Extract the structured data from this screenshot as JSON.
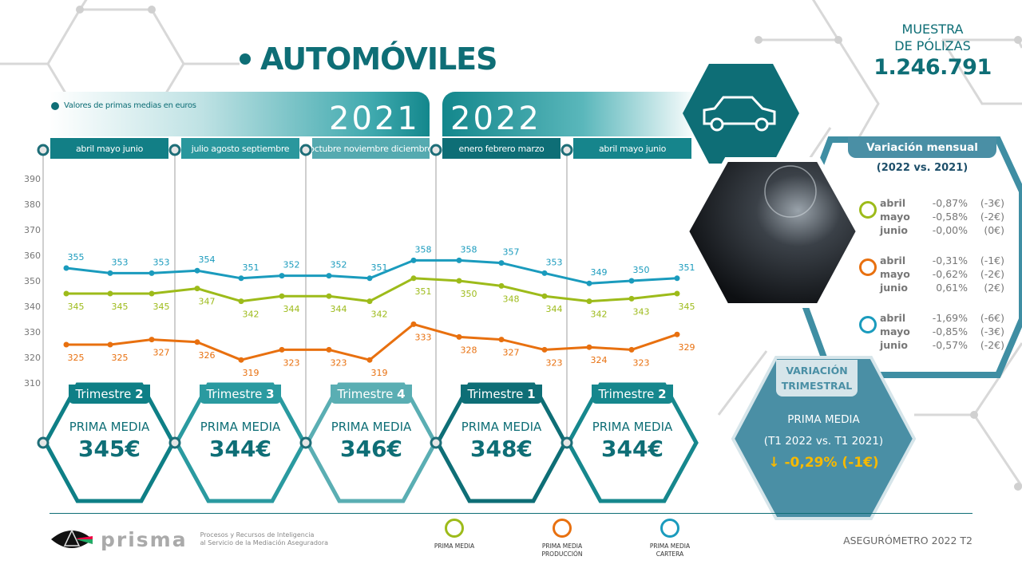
{
  "header": {
    "title": "AUTOMÓVILES",
    "note": "Valores de primas medias en euros",
    "year_2021": "2021",
    "year_2022": "2022"
  },
  "periods": [
    {
      "label": "abril  mayo  junio",
      "color": "#127f86"
    },
    {
      "label": "julio  agosto  septiembre",
      "color": "#2a979d"
    },
    {
      "label": "octubre noviembre diciembre",
      "color": "#55aab0"
    },
    {
      "label": "enero  febrero  marzo",
      "color": "#0e6e76"
    },
    {
      "label": "abril  mayo  junio",
      "color": "#16858c"
    }
  ],
  "muestra": {
    "line1": "MUESTRA",
    "line2": "DE PÓLIZAS",
    "value": "1.246.791"
  },
  "chart_data": {
    "type": "line",
    "ylim": [
      310,
      390
    ],
    "yticks": [
      390,
      380,
      370,
      360,
      350,
      340,
      330,
      320,
      310
    ],
    "categories": [
      "abr 21",
      "may 21",
      "jun 21",
      "jul 21",
      "ago 21",
      "sep 21",
      "oct 21",
      "nov 21",
      "dic 21",
      "ene 22",
      "feb 22",
      "mar 22",
      "abr 22",
      "may 22",
      "jun 22"
    ],
    "series": [
      {
        "name": "PRIMA MEDIA CARTERA",
        "color": "#1a9bbd",
        "values": [
          355,
          353,
          353,
          354,
          351,
          352,
          352,
          351,
          358,
          358,
          357,
          353,
          349,
          350,
          351
        ]
      },
      {
        "name": "PRIMA MEDIA",
        "color": "#9dbb1a",
        "values": [
          345,
          345,
          345,
          347,
          342,
          344,
          344,
          342,
          351,
          350,
          348,
          344,
          342,
          343,
          345
        ]
      },
      {
        "name": "PRIMA MEDIA PRODUCCIÓN",
        "color": "#e8700f",
        "values": [
          325,
          325,
          327,
          326,
          319,
          323,
          323,
          319,
          333,
          328,
          327,
          323,
          324,
          323,
          329
        ]
      }
    ],
    "grid": false,
    "legend": "bottom"
  },
  "quarters": [
    {
      "label": "Trimestre",
      "num": "2",
      "pm": "PRIMA MEDIA",
      "value": "345€",
      "color": "#0e7f86"
    },
    {
      "label": "Trimestre",
      "num": "3",
      "pm": "PRIMA MEDIA",
      "value": "344€",
      "color": "#2a9aa0"
    },
    {
      "label": "Trimestre",
      "num": "4",
      "pm": "PRIMA MEDIA",
      "value": "346€",
      "color": "#5aaeb3"
    },
    {
      "label": "Trimestre",
      "num": "1",
      "pm": "PRIMA MEDIA",
      "value": "348€",
      "color": "#0e6e76"
    },
    {
      "label": "Trimestre",
      "num": "2",
      "pm": "PRIMA MEDIA",
      "value": "344€",
      "color": "#16878d"
    }
  ],
  "variacion_mensual": {
    "title": "Variación mensual",
    "subtitle": "(2022 vs. 2021)",
    "groups": [
      {
        "color": "#9dbb1a",
        "rows": [
          {
            "m": "abril",
            "p": "-0,87%",
            "e": "(-3€)"
          },
          {
            "m": "mayo",
            "p": "-0,58%",
            "e": "(-2€)"
          },
          {
            "m": "junio",
            "p": "-0,00%",
            "e": "(0€)"
          }
        ]
      },
      {
        "color": "#e8700f",
        "rows": [
          {
            "m": "abril",
            "p": "-0,31%",
            "e": "(-1€)"
          },
          {
            "m": "mayo",
            "p": "-0,62%",
            "e": "(-2€)"
          },
          {
            "m": "junio",
            "p": "0,61%",
            "e": "(2€)"
          }
        ]
      },
      {
        "color": "#1a9bbd",
        "rows": [
          {
            "m": "abril",
            "p": "-1,69%",
            "e": "(-6€)"
          },
          {
            "m": "mayo",
            "p": "-0,85%",
            "e": "(-3€)"
          },
          {
            "m": "junio",
            "p": "-0,57%",
            "e": "(-2€)"
          }
        ]
      }
    ]
  },
  "variacion_trimestral": {
    "title1": "VARIACIÓN",
    "title2": "TRIMESTRAL",
    "line1": "PRIMA MEDIA",
    "line2": "(T1 2022 vs. T1 2021)",
    "value": "-0,29% (-1€)",
    "arrow": "↓"
  },
  "legend": [
    {
      "label1": "PRIMA MEDIA",
      "label2": "",
      "color": "#9dbb1a"
    },
    {
      "label1": "PRIMA MEDIA",
      "label2": "PRODUCCIÓN",
      "color": "#e8700f"
    },
    {
      "label1": "PRIMA MEDIA",
      "label2": "CARTERA",
      "color": "#1a9bbd"
    }
  ],
  "footer": {
    "brand": "prisma",
    "tag1": "Procesos y Recursos de Inteligencia",
    "tag2": "al Servicio de la Mediación Aseguradora",
    "edition": "ASEGURÓMETRO 2022 T2"
  },
  "icons": {
    "car": "car-icon",
    "photo": "dashboard-photo"
  }
}
